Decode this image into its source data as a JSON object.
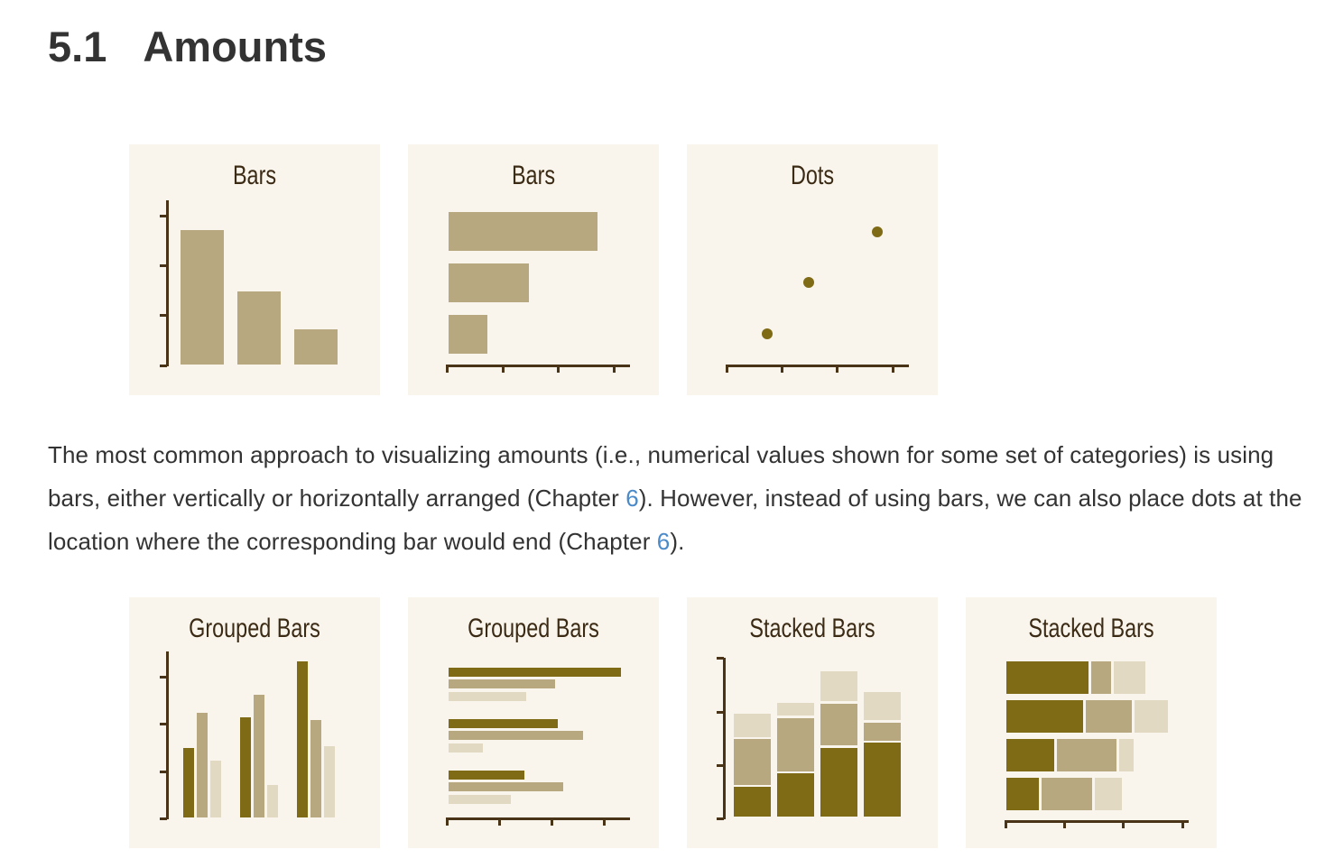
{
  "section": {
    "number": "5.1",
    "title": "Amounts"
  },
  "colors": {
    "panel_bg": "#f9f5ec",
    "dark": "#7f6a15",
    "mid": "#b7a87f",
    "light": "#e2d9c3",
    "axis": "#4a3418",
    "link": "#4a8ac9"
  },
  "top_panels": [
    {
      "title": "Bars",
      "kind": "vertical-bars"
    },
    {
      "title": "Bars",
      "kind": "horizontal-bars"
    },
    {
      "title": "Dots",
      "kind": "dots"
    }
  ],
  "paragraph": {
    "t1": "The most common approach to visualizing amounts (i.e., numerical values shown for some set of categories) is using bars, either vertically or horizontally arranged (Chapter ",
    "link1": "6",
    "t2": "). However, instead of using bars, we can also place dots at the location where the corresponding bar would end (Chapter ",
    "link2": "6",
    "t3": ")."
  },
  "bottom_panels": [
    {
      "title": "Grouped Bars",
      "kind": "grouped-vertical-bars"
    },
    {
      "title": "Grouped Bars",
      "kind": "grouped-horizontal-bars"
    },
    {
      "title": "Stacked Bars",
      "kind": "stacked-vertical-bars"
    },
    {
      "title": "Stacked Bars",
      "kind": "stacked-horizontal-bars"
    }
  ]
}
